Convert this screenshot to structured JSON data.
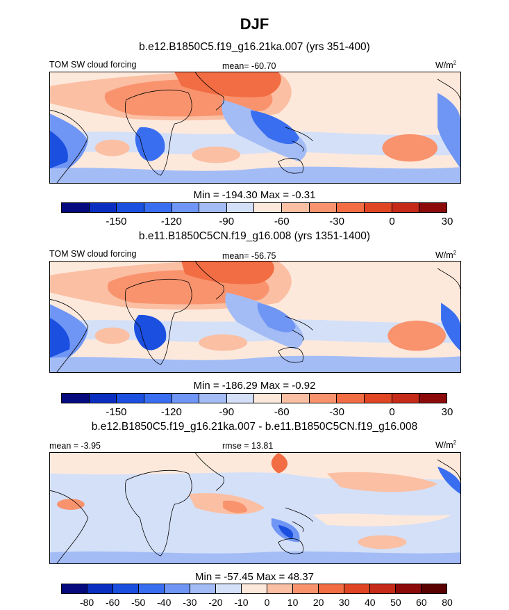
{
  "season": "DJF",
  "unit_base": "W/m",
  "unit_exp": "2",
  "colorbar_colors_abs": [
    "#050a7e",
    "#0a2fc0",
    "#1a4fe0",
    "#3a6ef0",
    "#6f96f4",
    "#a3bcf6",
    "#d4e0f8",
    "#fde9dc",
    "#fbbfa3",
    "#f9936e",
    "#f26d43",
    "#e04524",
    "#c52b18",
    "#8c0a0a"
  ],
  "colorbar_colors_diff": [
    "#050a7e",
    "#0a2fc0",
    "#1a4fe0",
    "#3a6ef0",
    "#6f96f4",
    "#a3bcf6",
    "#d4e0f8",
    "#fde9dc",
    "#fbbfa3",
    "#f9936e",
    "#f26d43",
    "#e04524",
    "#c52b18",
    "#8c0a0a",
    "#5a0000"
  ],
  "panels": [
    {
      "title": "b.e12.B1850C5.f19_g16.21ka.007 (yrs 351-400)",
      "variable": "TOM SW cloud forcing",
      "mean_text": "mean= -60.70",
      "minmax": "Min = -194.30 Max =  -0.31",
      "tick_labels": [
        "-150",
        "-120",
        "-90",
        "-60",
        "-30",
        "0",
        "30"
      ]
    },
    {
      "title": "b.e11.B1850C5CN.f19_g16.008 (yrs 1351-1400)",
      "variable": "TOM SW cloud forcing",
      "mean_text": "mean= -56.75",
      "minmax": "Min = -186.29 Max =  -0.92",
      "tick_labels": [
        "-150",
        "-120",
        "-90",
        "-60",
        "-30",
        "0",
        "30"
      ]
    },
    {
      "title": "b.e12.B1850C5.f19_g16.21ka.007 - b.e11.B1850C5CN.f19_g16.008",
      "mean_text": "mean =  -3.95",
      "rmse_text": "rmse =  13.81",
      "minmax": "Min = -57.45 Max =  48.37",
      "tick_labels": [
        "-80",
        "-60",
        "-50",
        "-40",
        "-30",
        "-20",
        "-10",
        "0",
        "10",
        "20",
        "30",
        "40",
        "50",
        "60",
        "80"
      ]
    }
  ],
  "chart_data": [
    {
      "type": "heatmap",
      "title": "b.e12.B1850C5.f19_g16.21ka.007 (yrs 351-400)",
      "variable": "TOM SW cloud forcing",
      "units": "W/m2",
      "mean": -60.7,
      "min": -194.3,
      "max": -0.31,
      "colorbar_levels": [
        -165,
        -150,
        -135,
        -120,
        -105,
        -90,
        -75,
        -60,
        -45,
        -30,
        -15,
        0,
        15,
        30,
        45
      ]
    },
    {
      "type": "heatmap",
      "title": "b.e11.B1850C5CN.f19_g16.008 (yrs 1351-1400)",
      "variable": "TOM SW cloud forcing",
      "units": "W/m2",
      "mean": -56.75,
      "min": -186.29,
      "max": -0.92,
      "colorbar_levels": [
        -165,
        -150,
        -135,
        -120,
        -105,
        -90,
        -75,
        -60,
        -45,
        -30,
        -15,
        0,
        15,
        30,
        45
      ]
    },
    {
      "type": "heatmap",
      "title": "b.e12.B1850C5.f19_g16.21ka.007 - b.e11.B1850C5CN.f19_g16.008",
      "units": "W/m2",
      "mean": -3.95,
      "rmse": 13.81,
      "min": -57.45,
      "max": 48.37,
      "colorbar_levels": [
        -80,
        -60,
        -50,
        -40,
        -30,
        -20,
        -10,
        0,
        10,
        20,
        30,
        40,
        50,
        60,
        80
      ]
    }
  ]
}
